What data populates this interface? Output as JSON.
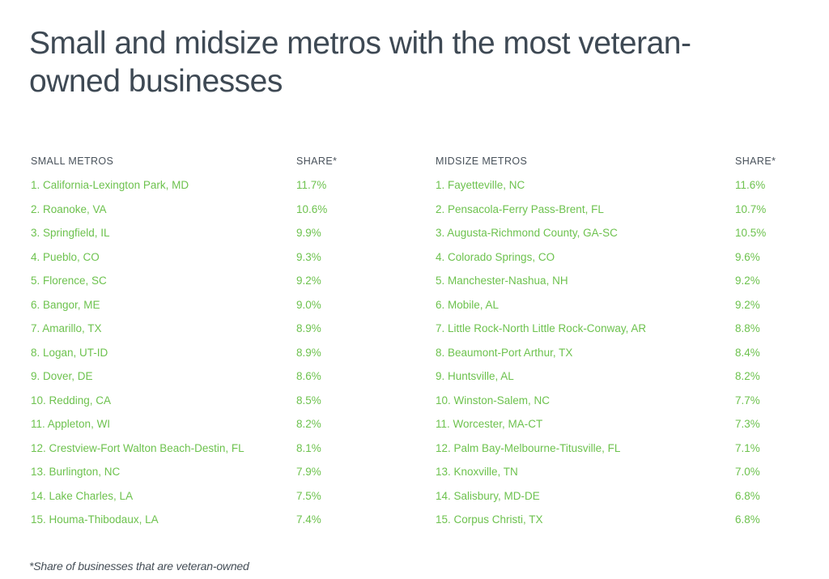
{
  "page": {
    "title_line1": "Small and midsize metros with the most veteran-",
    "title_line2": "owned businesses",
    "footnote": "*Share of businesses that are veteran-owned"
  },
  "colors": {
    "accent_green": "#6dc24e",
    "heading_slate": "#3e4954"
  },
  "tables": {
    "small": {
      "header_metro": "SMALL METROS",
      "header_share": "SHARE*",
      "rows": [
        {
          "name": "1. California-Lexington Park, MD",
          "share": "11.7%"
        },
        {
          "name": "2. Roanoke, VA",
          "share": "10.6%"
        },
        {
          "name": "3. Springfield, IL",
          "share": "9.9%"
        },
        {
          "name": "4. Pueblo, CO",
          "share": "9.3%"
        },
        {
          "name": "5. Florence, SC",
          "share": "9.2%"
        },
        {
          "name": "6. Bangor, ME",
          "share": "9.0%"
        },
        {
          "name": "7. Amarillo, TX",
          "share": "8.9%"
        },
        {
          "name": "8. Logan, UT-ID",
          "share": "8.9%"
        },
        {
          "name": "9. Dover, DE",
          "share": "8.6%"
        },
        {
          "name": "10. Redding, CA",
          "share": "8.5%"
        },
        {
          "name": "11. Appleton, WI",
          "share": "8.2%"
        },
        {
          "name": "12. Crestview-Fort Walton Beach-Destin, FL",
          "share": "8.1%"
        },
        {
          "name": "13. Burlington, NC",
          "share": "7.9%"
        },
        {
          "name": "14. Lake Charles, LA",
          "share": "7.5%"
        },
        {
          "name": "15. Houma-Thibodaux, LA",
          "share": "7.4%"
        }
      ]
    },
    "midsize": {
      "header_metro": "MIDSIZE METROS",
      "header_share": "SHARE*",
      "rows": [
        {
          "name": "1. Fayetteville, NC",
          "share": "11.6%"
        },
        {
          "name": "2. Pensacola-Ferry Pass-Brent, FL",
          "share": "10.7%"
        },
        {
          "name": "3. Augusta-Richmond County, GA-SC",
          "share": "10.5%"
        },
        {
          "name": "4. Colorado Springs, CO",
          "share": "9.6%"
        },
        {
          "name": "5. Manchester-Nashua, NH",
          "share": "9.2%"
        },
        {
          "name": "6. Mobile, AL",
          "share": "9.2%"
        },
        {
          "name": "7. Little Rock-North Little Rock-Conway, AR",
          "share": "8.8%"
        },
        {
          "name": "8. Beaumont-Port Arthur, TX",
          "share": "8.4%"
        },
        {
          "name": "9. Huntsville, AL",
          "share": "8.2%"
        },
        {
          "name": "10. Winston-Salem, NC",
          "share": "7.7%"
        },
        {
          "name": "11. Worcester, MA-CT",
          "share": "7.3%"
        },
        {
          "name": "12. Palm Bay-Melbourne-Titusville, FL",
          "share": "7.1%"
        },
        {
          "name": "13. Knoxville, TN",
          "share": "7.0%"
        },
        {
          "name": "14. Salisbury, MD-DE",
          "share": "6.8%"
        },
        {
          "name": "15. Corpus Christi, TX",
          "share": "6.8%"
        }
      ]
    }
  },
  "chart_data": [
    {
      "type": "table",
      "title": "Small and midsize metros with the most veteran-owned businesses",
      "subtitle": "SMALL METROS",
      "columns": [
        "SMALL METROS",
        "SHARE*"
      ],
      "rows": [
        [
          "California-Lexington Park, MD",
          11.7
        ],
        [
          "Roanoke, VA",
          10.6
        ],
        [
          "Springfield, IL",
          9.9
        ],
        [
          "Pueblo, CO",
          9.3
        ],
        [
          "Florence, SC",
          9.2
        ],
        [
          "Bangor, ME",
          9.0
        ],
        [
          "Amarillo, TX",
          8.9
        ],
        [
          "Logan, UT-ID",
          8.9
        ],
        [
          "Dover, DE",
          8.6
        ],
        [
          "Redding, CA",
          8.5
        ],
        [
          "Appleton, WI",
          8.2
        ],
        [
          "Crestview-Fort Walton Beach-Destin, FL",
          8.1
        ],
        [
          "Burlington, NC",
          7.9
        ],
        [
          "Lake Charles, LA",
          7.5
        ],
        [
          "Houma-Thibodaux, LA",
          7.4
        ]
      ],
      "value_unit": "percent",
      "note": "*Share of businesses that are veteran-owned"
    },
    {
      "type": "table",
      "title": "Small and midsize metros with the most veteran-owned businesses",
      "subtitle": "MIDSIZE METROS",
      "columns": [
        "MIDSIZE METROS",
        "SHARE*"
      ],
      "rows": [
        [
          "Fayetteville, NC",
          11.6
        ],
        [
          "Pensacola-Ferry Pass-Brent, FL",
          10.7
        ],
        [
          "Augusta-Richmond County, GA-SC",
          10.5
        ],
        [
          "Colorado Springs, CO",
          9.6
        ],
        [
          "Manchester-Nashua, NH",
          9.2
        ],
        [
          "Mobile, AL",
          9.2
        ],
        [
          "Little Rock-North Little Rock-Conway, AR",
          8.8
        ],
        [
          "Beaumont-Port Arthur, TX",
          8.4
        ],
        [
          "Huntsville, AL",
          8.2
        ],
        [
          "Winston-Salem, NC",
          7.7
        ],
        [
          "Worcester, MA-CT",
          7.3
        ],
        [
          "Palm Bay-Melbourne-Titusville, FL",
          7.1
        ],
        [
          "Knoxville, TN",
          7.0
        ],
        [
          "Salisbury, MD-DE",
          6.8
        ],
        [
          "Corpus Christi, TX",
          6.8
        ]
      ],
      "value_unit": "percent",
      "note": "*Share of businesses that are veteran-owned"
    }
  ]
}
